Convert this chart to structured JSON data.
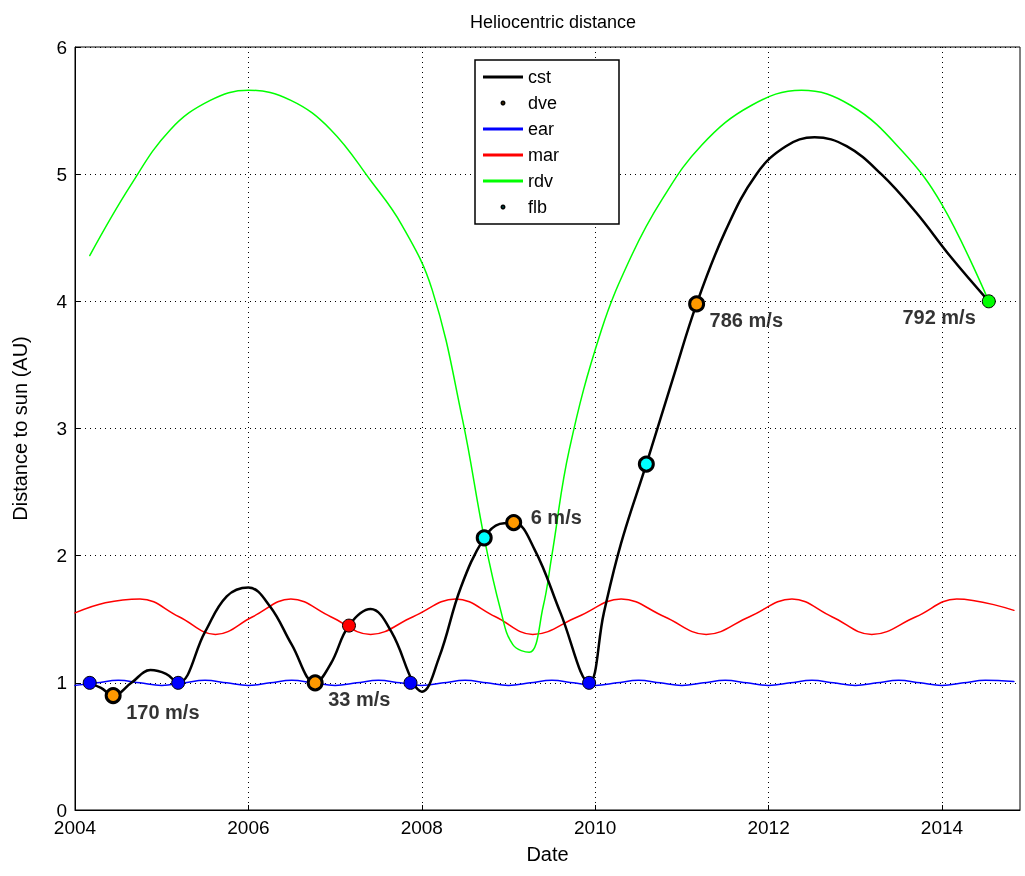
{
  "chart_data": {
    "type": "line",
    "title": "Heliocentric distance",
    "xlabel": "Date",
    "ylabel": "Distance to sun (AU)",
    "xlim": [
      2004,
      2014.9
    ],
    "xticks": [
      2004,
      2006,
      2008,
      2010,
      2012,
      2014
    ],
    "ylim": [
      0,
      6
    ],
    "yticks": [
      0,
      1,
      2,
      3,
      4,
      5,
      6
    ],
    "grid": true,
    "legend": "top",
    "series": [
      {
        "name": "cst",
        "marker": "none",
        "color": "#000000",
        "x": [
          2004.15,
          2004.3,
          2004.44,
          2004.65,
          2004.87,
          2005.05,
          2005.19,
          2005.5,
          2005.75,
          2006.0,
          2006.25,
          2006.5,
          2006.77,
          2006.95,
          2007.16,
          2007.41,
          2007.65,
          2007.9,
          2008.0,
          2008.2,
          2008.45,
          2008.72,
          2008.9,
          2009.06,
          2009.3,
          2009.6,
          2009.93,
          2010.1,
          2010.3,
          2010.59,
          2010.9,
          2011.17,
          2011.5,
          2011.86,
          2012.2,
          2012.53,
          2012.9,
          2013.3,
          2013.7,
          2014.1,
          2014.54
        ],
        "values": [
          1.0,
          0.96,
          0.9,
          1.0,
          1.1,
          1.07,
          1.0,
          1.4,
          1.68,
          1.75,
          1.6,
          1.3,
          1.0,
          1.15,
          1.45,
          1.58,
          1.4,
          1.0,
          0.93,
          1.2,
          1.75,
          2.14,
          2.25,
          2.26,
          2.05,
          1.55,
          1.0,
          1.55,
          2.1,
          2.72,
          3.4,
          3.98,
          4.55,
          5.0,
          5.22,
          5.29,
          5.22,
          5.0,
          4.7,
          4.35,
          4.0
        ]
      },
      {
        "name": "dve",
        "type": "scatter",
        "marker": "circle",
        "color": "#ff9900",
        "x": [
          2004.44,
          2006.77,
          2009.06,
          2011.17
        ],
        "values": [
          0.9,
          1.0,
          2.26,
          3.98
        ]
      },
      {
        "name": "ear",
        "marker": "none",
        "color": "#0000ff",
        "x": [
          2004.0,
          2004.25,
          2004.5,
          2004.75,
          2005.0,
          2005.25,
          2005.5,
          2005.75,
          2006.0,
          2006.25,
          2006.5,
          2006.75,
          2007.0,
          2007.25,
          2007.5,
          2007.75,
          2008.0,
          2008.25,
          2008.5,
          2008.75,
          2009.0,
          2009.25,
          2009.5,
          2009.75,
          2010.0,
          2010.25,
          2010.5,
          2010.75,
          2011.0,
          2011.25,
          2011.5,
          2011.75,
          2012.0,
          2012.25,
          2012.5,
          2012.75,
          2013.0,
          2013.25,
          2013.5,
          2013.75,
          2014.0,
          2014.25,
          2014.5,
          2014.83
        ],
        "values": [
          0.98,
          1.0,
          1.02,
          1.0,
          0.98,
          1.0,
          1.02,
          1.0,
          0.98,
          1.0,
          1.02,
          1.0,
          0.98,
          1.0,
          1.02,
          1.0,
          0.98,
          1.0,
          1.02,
          1.0,
          0.98,
          1.0,
          1.02,
          1.0,
          0.98,
          1.0,
          1.02,
          1.0,
          0.98,
          1.0,
          1.02,
          1.0,
          0.98,
          1.0,
          1.02,
          1.0,
          0.98,
          1.0,
          1.02,
          1.0,
          0.98,
          1.0,
          1.02,
          1.01
        ]
      },
      {
        "name": "mar",
        "marker": "none",
        "color": "#ff0000",
        "x": [
          2004.0,
          2004.35,
          2004.75,
          2005.2,
          2005.62,
          2006.05,
          2006.49,
          2006.95,
          2007.41,
          2007.9,
          2008.39,
          2008.85,
          2009.28,
          2009.8,
          2010.3,
          2010.8,
          2011.28,
          2011.78,
          2012.27,
          2012.73,
          2013.19,
          2013.7,
          2014.17,
          2014.83
        ],
        "values": [
          1.55,
          1.63,
          1.66,
          1.52,
          1.38,
          1.52,
          1.66,
          1.52,
          1.38,
          1.52,
          1.66,
          1.52,
          1.38,
          1.52,
          1.66,
          1.52,
          1.38,
          1.52,
          1.66,
          1.52,
          1.38,
          1.52,
          1.66,
          1.57
        ]
      },
      {
        "name": "rdv",
        "marker": "none",
        "color": "#00ff00",
        "x": [
          2004.17,
          2004.64,
          2005.1,
          2005.56,
          2006.0,
          2006.49,
          2006.95,
          2007.41,
          2007.77,
          2008.12,
          2008.47,
          2008.72,
          2008.91,
          2009.05,
          2009.24,
          2009.4,
          2009.5,
          2009.7,
          2010.07,
          2010.42,
          2010.77,
          2011.23,
          2011.8,
          2012.38,
          2012.95,
          2013.53,
          2014.0,
          2014.54
        ],
        "values": [
          4.36,
          4.91,
          5.35,
          5.58,
          5.66,
          5.58,
          5.35,
          4.95,
          4.6,
          4.09,
          3.07,
          2.14,
          1.57,
          1.3,
          1.24,
          1.6,
          2.0,
          2.83,
          3.77,
          4.36,
          4.8,
          5.23,
          5.54,
          5.66,
          5.54,
          5.19,
          4.76,
          4.0
        ]
      },
      {
        "name": "flb",
        "type": "scatter",
        "marker": "circle",
        "color": "#00ffff",
        "x": [
          2008.72,
          2010.59
        ],
        "values": [
          2.14,
          2.72
        ]
      },
      {
        "type": "scatter",
        "marker": "circle",
        "color": "#0000ff",
        "x": [
          2004.17,
          2005.19,
          2007.87,
          2009.93
        ],
        "values": [
          1.0,
          1.0,
          1.0,
          1.0
        ]
      },
      {
        "type": "scatter",
        "marker": "circle",
        "color": "#ff0000",
        "x": [
          2007.16
        ],
        "values": [
          1.45
        ]
      },
      {
        "type": "scatter",
        "marker": "circle",
        "color": "#00ff00",
        "x": [
          2014.54
        ],
        "values": [
          4.0
        ]
      }
    ],
    "annotations": [
      {
        "text": "170 m/s",
        "x": 2004.44,
        "y": 0.9
      },
      {
        "text": "33 m/s",
        "x": 2006.77,
        "y": 1.0
      },
      {
        "text": "6 m/s",
        "x": 2009.06,
        "y": 2.26
      },
      {
        "text": "786 m/s",
        "x": 2011.17,
        "y": 3.98
      },
      {
        "text": "792 m/s",
        "x": 2014.54,
        "y": 4.0
      }
    ]
  }
}
